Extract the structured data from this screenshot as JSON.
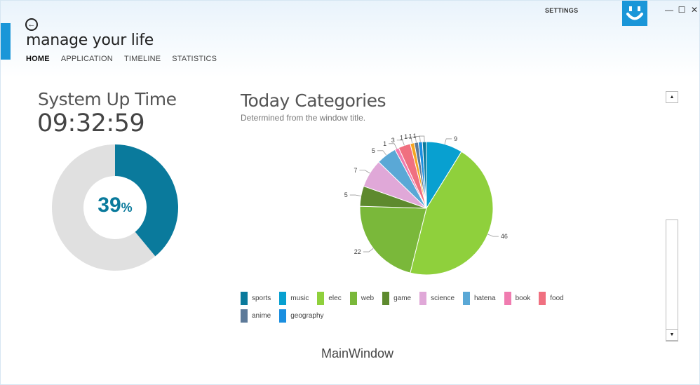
{
  "window": {
    "title": "manage your life",
    "settings_label": "SETTINGS",
    "footer_title": "MainWindow",
    "controls": {
      "minimize": "—",
      "maximize": "☐",
      "close": "✕"
    },
    "back_glyph": "←"
  },
  "nav": [
    {
      "label": "HOME",
      "active": true
    },
    {
      "label": "APPLICATION",
      "active": false
    },
    {
      "label": "TIMELINE",
      "active": false
    },
    {
      "label": "STATISTICS",
      "active": false
    }
  ],
  "uptime": {
    "title": "System Up Time",
    "value": "09:32:59",
    "percent": 39,
    "percent_num": "39",
    "percent_unit": "%",
    "fill_color": "#0a7a9c",
    "rest_color": "#e0e0e0"
  },
  "categories": {
    "title": "Today Categories",
    "subtitle": "Determined from the window title."
  },
  "chart_data": {
    "type": "pie",
    "categories": [
      "sports",
      "music",
      "elec",
      "web",
      "game",
      "science",
      "hatena",
      "book",
      "food",
      "anime",
      "geography"
    ],
    "colors": [
      "#0a7a9c",
      "#08a0d0",
      "#8fd03c",
      "#7ab83a",
      "#5e8a2e",
      "#e0a8d8",
      "#5aa8d6",
      "#f07cb0",
      "#f07080",
      "#5d7a99",
      "#1a8fe0"
    ],
    "slices": [
      {
        "label": "9",
        "value": 9,
        "color": "#08a0d0"
      },
      {
        "label": "46",
        "value": 46,
        "color": "#8fd03c"
      },
      {
        "label": "22",
        "value": 22,
        "color": "#7ab83a"
      },
      {
        "label": "5",
        "value": 5,
        "color": "#5e8a2e"
      },
      {
        "label": "7",
        "value": 7,
        "color": "#e0a8d8"
      },
      {
        "label": "5",
        "value": 5,
        "color": "#5aa8d6"
      },
      {
        "label": "1",
        "value": 1,
        "color": "#f07cb0"
      },
      {
        "label": "3",
        "value": 3,
        "color": "#f07080"
      },
      {
        "label": "1",
        "value": 1,
        "color": "#f5a623"
      },
      {
        "label": "1",
        "value": 1,
        "color": "#5d7a99"
      },
      {
        "label": "1",
        "value": 1,
        "color": "#1a8fe0"
      },
      {
        "label": "1",
        "value": 1,
        "color": "#0a7a9c"
      }
    ]
  },
  "scrollbar": {
    "up_glyph": "▲",
    "down_glyph": "▼"
  }
}
